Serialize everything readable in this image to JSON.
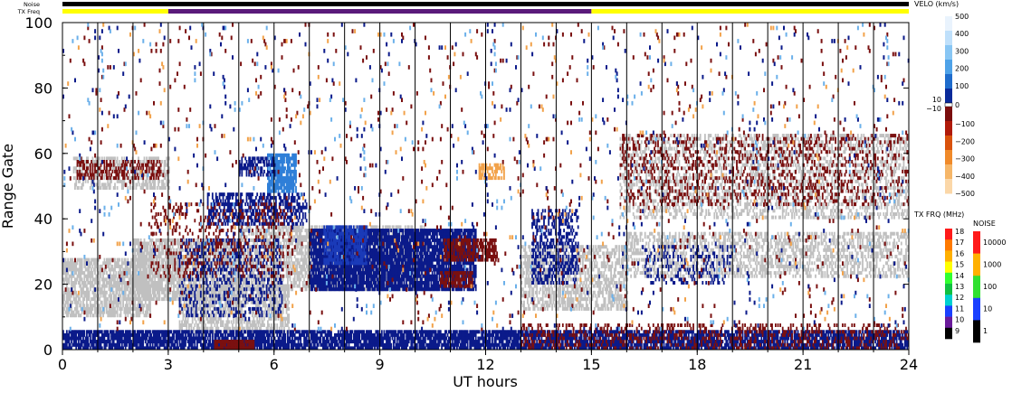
{
  "header": {
    "noise_label": "Noise",
    "txfreq_label": "TX Freq"
  },
  "chart_data": {
    "type": "heatmap",
    "xlabel": "UT hours",
    "ylabel": "Range Gate",
    "xlim": [
      0,
      24
    ],
    "ylim": [
      0,
      100
    ],
    "x_ticks": [
      "0",
      "3",
      "6",
      "9",
      "12",
      "15",
      "18",
      "21",
      "24"
    ],
    "y_ticks": [
      "0",
      "20",
      "40",
      "60",
      "80",
      "100"
    ],
    "scan_boundaries_hours": [
      1,
      2,
      3,
      4,
      5,
      6,
      7,
      8,
      9,
      10,
      11,
      12,
      13,
      14,
      15,
      16,
      17,
      18,
      19,
      20,
      21,
      22,
      23
    ],
    "top_bars": {
      "noise": [
        {
          "from": 0,
          "to": 24,
          "color": "#000000"
        }
      ],
      "tx_freq": [
        {
          "from": 0,
          "to": 3,
          "color": "#ffff00"
        },
        {
          "from": 3,
          "to": 15,
          "color": "#5a1a7a"
        },
        {
          "from": 15,
          "to": 24,
          "color": "#ffff00"
        }
      ]
    },
    "regions": [
      {
        "kind": "ground_scatter",
        "color": "#c0c0c0",
        "t": [
          0,
          2.5
        ],
        "g": [
          10,
          28
        ],
        "density": 0.7
      },
      {
        "kind": "ground_scatter",
        "color": "#c0c0c0",
        "t": [
          2,
          5
        ],
        "g": [
          15,
          34
        ],
        "density": 0.75
      },
      {
        "kind": "ground_scatter",
        "color": "#c0c0c0",
        "t": [
          3.3,
          6.4
        ],
        "g": [
          5,
          20
        ],
        "density": 0.6
      },
      {
        "kind": "ground_scatter",
        "color": "#c0c0c0",
        "t": [
          5,
          10.3
        ],
        "g": [
          18,
          38
        ],
        "density": 0.6
      },
      {
        "kind": "ground_scatter",
        "color": "#c0c0c0",
        "t": [
          13,
          16
        ],
        "g": [
          12,
          32
        ],
        "density": 0.55
      },
      {
        "kind": "ground_scatter",
        "color": "#c0c0c0",
        "t": [
          16,
          24
        ],
        "g": [
          22,
          36
        ],
        "density": 0.45
      },
      {
        "kind": "ground_scatter",
        "color": "#c0c0c0",
        "t": [
          15.8,
          24
        ],
        "g": [
          40,
          66
        ],
        "density": 0.35
      },
      {
        "kind": "ground_scatter",
        "color": "#c0c0c0",
        "t": [
          0.3,
          3
        ],
        "g": [
          49,
          59
        ],
        "density": 0.5
      },
      {
        "kind": "velocity",
        "color": "#0b1a8a",
        "t": [
          0,
          24
        ],
        "g": [
          0,
          6
        ],
        "density": 0.8
      },
      {
        "kind": "velocity",
        "color": "#0b1a8a",
        "t": [
          7,
          11.7
        ],
        "g": [
          18,
          37
        ],
        "density": 0.85
      },
      {
        "kind": "velocity",
        "color": "#1a3ab8",
        "t": [
          7.4,
          8.6
        ],
        "g": [
          26,
          38
        ],
        "density": 0.7
      },
      {
        "kind": "velocity",
        "color": "#0b1a8a",
        "t": [
          4.1,
          6.9
        ],
        "g": [
          38,
          48
        ],
        "density": 0.5
      },
      {
        "kind": "velocity",
        "color": "#2f7fd8",
        "t": [
          5.8,
          6.6
        ],
        "g": [
          48,
          60
        ],
        "density": 0.85
      },
      {
        "kind": "velocity",
        "color": "#0b1a8a",
        "t": [
          5.0,
          6.0
        ],
        "g": [
          53,
          59
        ],
        "density": 0.5
      },
      {
        "kind": "velocity",
        "color": "#0b1a8a",
        "t": [
          3.3,
          6.2
        ],
        "g": [
          10,
          34
        ],
        "density": 0.25
      },
      {
        "kind": "velocity",
        "color": "#0b1a8a",
        "t": [
          13.3,
          14.6
        ],
        "g": [
          20,
          43
        ],
        "density": 0.4
      },
      {
        "kind": "velocity",
        "color": "#0b1a8a",
        "t": [
          16.5,
          19
        ],
        "g": [
          20,
          32
        ],
        "density": 0.2
      },
      {
        "kind": "velocity",
        "color": "#7a1010",
        "t": [
          4.3,
          5.4
        ],
        "g": [
          0,
          3
        ],
        "density": 0.9
      },
      {
        "kind": "velocity",
        "color": "#7a1010",
        "t": [
          10.8,
          12.3
        ],
        "g": [
          27,
          34
        ],
        "density": 0.7
      },
      {
        "kind": "velocity",
        "color": "#7a1010",
        "t": [
          10.7,
          11.6
        ],
        "g": [
          19,
          24
        ],
        "density": 0.7
      },
      {
        "kind": "velocity",
        "color": "#7a1010",
        "t": [
          0.4,
          2.8
        ],
        "g": [
          52,
          58
        ],
        "density": 0.45
      },
      {
        "kind": "velocity",
        "color": "#7a1010",
        "t": [
          15.8,
          24
        ],
        "g": [
          44,
          66
        ],
        "density": 0.18
      },
      {
        "kind": "velocity",
        "color": "#7a1010",
        "t": [
          2.5,
          6.5
        ],
        "g": [
          22,
          45
        ],
        "density": 0.15
      },
      {
        "kind": "velocity",
        "color": "#7a1010",
        "t": [
          13,
          24
        ],
        "g": [
          0,
          8
        ],
        "density": 0.25
      },
      {
        "kind": "velocity",
        "color": "#f2a24a",
        "t": [
          11.8,
          12.5
        ],
        "g": [
          52,
          57
        ],
        "density": 0.6
      },
      {
        "kind": "speckle",
        "color": "#7a1010",
        "t": [
          0,
          24
        ],
        "g": [
          6,
          100
        ],
        "density": 0.012
      },
      {
        "kind": "speckle",
        "color": "#0b1a8a",
        "t": [
          0,
          24
        ],
        "g": [
          6,
          100
        ],
        "density": 0.008
      },
      {
        "kind": "speckle",
        "color": "#f2a24a",
        "t": [
          0,
          24
        ],
        "g": [
          6,
          100
        ],
        "density": 0.004
      },
      {
        "kind": "speckle",
        "color": "#6bb0ea",
        "t": [
          0,
          24
        ],
        "g": [
          6,
          100
        ],
        "density": 0.005
      }
    ],
    "velocity_scale": {
      "title": "VELO (km/s)",
      "ticks": [
        "500",
        "400",
        "300",
        "200",
        "100",
        "0",
        "−100",
        "−200",
        "−300",
        "−400",
        "−500"
      ],
      "side_ticks": [
        "10",
        "−10"
      ],
      "colors": [
        "#e9f3fd",
        "#bfe0fb",
        "#88c6f4",
        "#4ea2e8",
        "#1f6ccc",
        "#0a2a9a",
        "#7a0d0d",
        "#b01a0a",
        "#d9520c",
        "#f08a2a",
        "#f6b668",
        "#fbd7a8"
      ]
    },
    "txfreq_scale": {
      "title": "TX FRQ (MHz)",
      "ticks": [
        "18",
        "17",
        "16",
        "15",
        "14",
        "13",
        "12",
        "11",
        "10",
        "9"
      ],
      "colors": [
        "#ff1a1a",
        "#ff7a00",
        "#ffb000",
        "#ffff00",
        "#30ff30",
        "#10c040",
        "#00d0d0",
        "#1a40ff",
        "#6a1a9a",
        "#000000"
      ]
    },
    "noise_scale": {
      "title": "NOISE",
      "ticks": [
        "10000",
        "1000",
        "100",
        "10",
        "1"
      ],
      "colors": [
        "#ff1a1a",
        "#ffb000",
        "#30e030",
        "#1a40ff",
        "#000000"
      ]
    }
  }
}
